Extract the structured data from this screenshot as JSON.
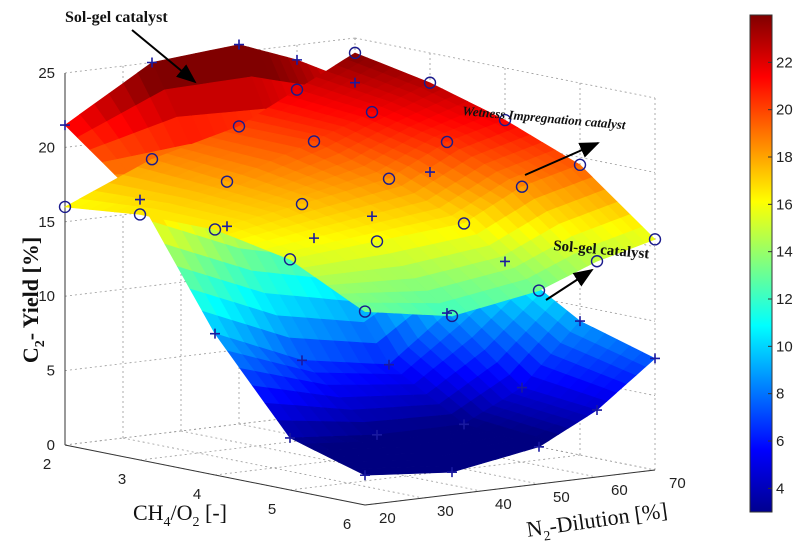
{
  "chart_data": {
    "type": "surface3d",
    "xlabel": "CH4/O2 [-]",
    "xlabel_main": "CH",
    "xlabel_sub1": "4",
    "xlabel_mid": "/O",
    "xlabel_sub2": "2",
    "xlabel_end": " [-]",
    "ylabel": "N2-Dilution [%]",
    "ylabel_main": "N",
    "ylabel_sub": "2",
    "ylabel_end": "-Dilution [%]",
    "zlabel": "C2- Yield [%]",
    "zlabel_main": "C",
    "zlabel_sub": "2",
    "zlabel_end": "- Yield [%]",
    "xlim": [
      2,
      6
    ],
    "ylim": [
      20,
      70
    ],
    "zlim": [
      0,
      25
    ],
    "x_ticks": [
      "2",
      "3",
      "4",
      "5",
      "6"
    ],
    "y_ticks": [
      "20",
      "30",
      "40",
      "50",
      "60",
      "70"
    ],
    "z_ticks": [
      "0",
      "5",
      "10",
      "15",
      "20",
      "25"
    ],
    "colorbar": {
      "ticks": [
        "4",
        "6",
        "8",
        "10",
        "12",
        "14",
        "16",
        "18",
        "20",
        "22"
      ],
      "range": [
        3,
        24
      ],
      "colormap": "jet"
    },
    "grid": true,
    "series": [
      {
        "marker": "circle",
        "x": [
          2.0,
          3.0,
          4.0,
          5.0,
          6.0
        ],
        "y": [
          20,
          35,
          50,
          60,
          70
        ],
        "z": [
          [
            16.0,
            18.5,
            20.0,
            22.0,
            24.0
          ],
          [
            16.5,
            18.0,
            20.0,
            21.5,
            23.0
          ],
          [
            16.5,
            17.5,
            18.5,
            20.5,
            21.5
          ],
          [
            15.5,
            16.0,
            16.5,
            18.5,
            19.5
          ],
          [
            13.0,
            12.0,
            13.0,
            14.5,
            15.5
          ]
        ]
      },
      {
        "marker": "plus",
        "x": [
          2.0,
          3.0,
          4.0,
          5.0,
          6.0
        ],
        "y": [
          20,
          35,
          50,
          60,
          70
        ],
        "z": [
          [
            21.5,
            25.0,
            25.5,
            24.0,
            22.0
          ],
          [
            17.5,
            15.0,
            13.5,
            14.5,
            17.0
          ],
          [
            9.5,
            7.0,
            6.0,
            9.0,
            12.0
          ],
          [
            3.5,
            3.0,
            3.0,
            5.0,
            9.0
          ],
          [
            2.0,
            1.5,
            2.5,
            4.5,
            7.5
          ]
        ]
      }
    ],
    "annotations": [
      {
        "text": "Sol-gel catalyst",
        "target_series": 1
      },
      {
        "text": "Wetness Impregnation catalyst",
        "target_series": 0
      },
      {
        "text": "Sol-gel catalyst",
        "target_series": 1
      }
    ]
  }
}
